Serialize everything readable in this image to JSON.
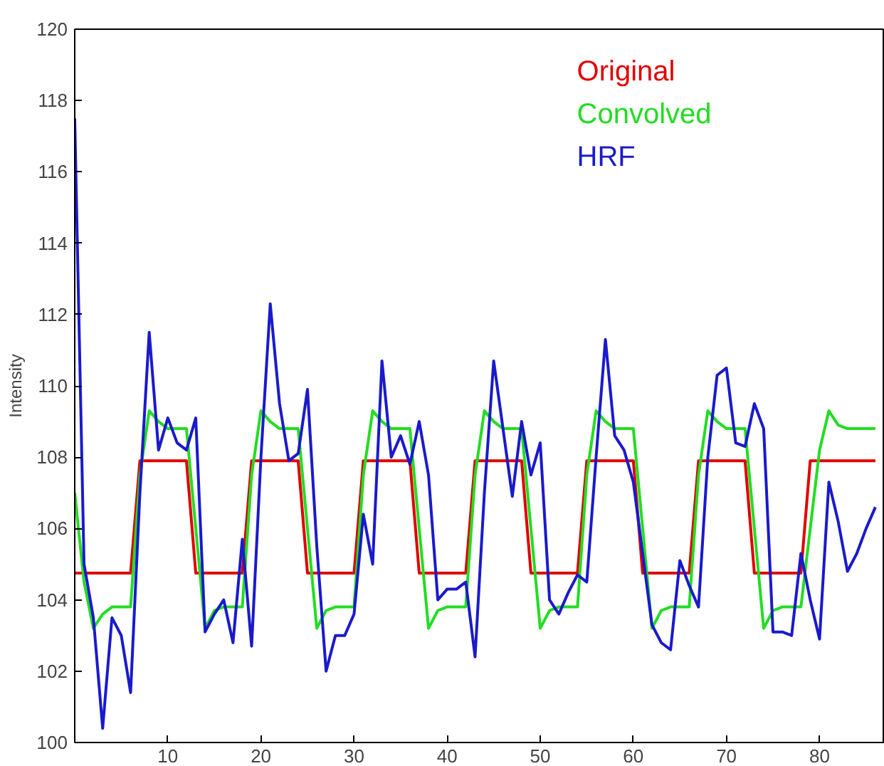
{
  "chart_data": {
    "type": "line",
    "ylabel": "Intensity",
    "xlim": [
      0,
      87
    ],
    "ylim": [
      100,
      120
    ],
    "xticks": [
      10,
      20,
      30,
      40,
      50,
      60,
      70,
      80
    ],
    "yticks": [
      100,
      102,
      104,
      106,
      108,
      110,
      112,
      114,
      116,
      118,
      120
    ],
    "grid": false,
    "legend": "top right",
    "marker": "none",
    "line_style": "solid",
    "x": [
      0,
      1,
      2,
      3,
      4,
      5,
      6,
      7,
      8,
      9,
      10,
      11,
      12,
      13,
      14,
      15,
      16,
      17,
      18,
      19,
      20,
      21,
      22,
      23,
      24,
      25,
      26,
      27,
      28,
      29,
      30,
      31,
      32,
      33,
      34,
      35,
      36,
      37,
      38,
      39,
      40,
      41,
      42,
      43,
      44,
      45,
      46,
      47,
      48,
      49,
      50,
      51,
      52,
      53,
      54,
      55,
      56,
      57,
      58,
      59,
      60,
      61,
      62,
      63,
      64,
      65,
      66,
      67,
      68,
      69,
      70,
      71,
      72,
      73,
      74,
      75,
      76,
      77,
      78,
      79,
      80,
      81,
      82,
      83,
      84,
      85,
      86
    ],
    "series": [
      {
        "name": "Original",
        "color": "#e00000",
        "values": [
          104.75,
          104.75,
          104.75,
          104.75,
          104.75,
          104.75,
          104.75,
          107.9,
          107.9,
          107.9,
          107.9,
          107.9,
          107.9,
          104.75,
          104.75,
          104.75,
          104.75,
          104.75,
          104.75,
          107.9,
          107.9,
          107.9,
          107.9,
          107.9,
          107.9,
          104.75,
          104.75,
          104.75,
          104.75,
          104.75,
          104.75,
          107.9,
          107.9,
          107.9,
          107.9,
          107.9,
          107.9,
          104.75,
          104.75,
          104.75,
          104.75,
          104.75,
          104.75,
          107.9,
          107.9,
          107.9,
          107.9,
          107.9,
          107.9,
          104.75,
          104.75,
          104.75,
          104.75,
          104.75,
          104.75,
          107.9,
          107.9,
          107.9,
          107.9,
          107.9,
          107.9,
          104.75,
          104.75,
          104.75,
          104.75,
          104.75,
          104.75,
          107.9,
          107.9,
          107.9,
          107.9,
          107.9,
          107.9,
          104.75,
          104.75,
          104.75,
          104.75,
          104.75,
          104.75,
          107.9,
          107.9,
          107.9,
          107.9,
          107.9,
          107.9,
          107.9,
          107.9
        ]
      },
      {
        "name": "Convolved",
        "color": "#22dd22",
        "values": [
          107,
          104.5,
          103.2,
          103.6,
          103.8,
          103.8,
          103.8,
          107.5,
          109.3,
          109,
          108.8,
          108.8,
          108.8,
          106,
          103.2,
          103.7,
          103.8,
          103.8,
          103.8,
          107.5,
          109.3,
          109,
          108.8,
          108.8,
          108.8,
          106,
          103.2,
          103.7,
          103.8,
          103.8,
          103.8,
          107.5,
          109.3,
          109,
          108.8,
          108.8,
          108.8,
          106,
          103.2,
          103.7,
          103.8,
          103.8,
          103.8,
          107.5,
          109.3,
          109,
          108.8,
          108.8,
          108.8,
          106,
          103.2,
          103.7,
          103.8,
          103.8,
          103.8,
          107.5,
          109.3,
          109,
          108.8,
          108.8,
          108.8,
          106,
          103.2,
          103.7,
          103.8,
          103.8,
          103.8,
          107.5,
          109.3,
          109,
          108.8,
          108.8,
          108.8,
          106,
          103.2,
          103.7,
          103.8,
          103.8,
          103.8,
          106,
          108.2,
          109.3,
          108.9,
          108.8,
          108.8,
          108.8,
          108.8
        ]
      },
      {
        "name": "HRF",
        "color": "#1a1acc",
        "values": [
          117.5,
          105,
          103.5,
          100.4,
          103.5,
          103,
          101.4,
          107,
          111.5,
          108.2,
          109.1,
          108.4,
          108.2,
          109.1,
          103.1,
          103.6,
          104,
          102.8,
          105.7,
          102.7,
          108,
          112.3,
          109.5,
          107.9,
          108.1,
          109.9,
          105.5,
          102,
          103,
          103,
          103.6,
          106.4,
          105,
          110.7,
          108,
          108.6,
          107.8,
          109,
          107.5,
          104,
          104.3,
          104.3,
          104.5,
          102.4,
          107,
          110.7,
          108.8,
          106.9,
          109,
          107.5,
          108.4,
          104,
          103.6,
          104.2,
          104.7,
          104.5,
          108,
          111.3,
          108.6,
          108.2,
          107.3,
          105.3,
          103.3,
          102.8,
          102.6,
          105.1,
          104.4,
          103.8,
          108,
          110.3,
          110.5,
          108.4,
          108.3,
          109.5,
          108.8,
          103.1,
          103.1,
          103,
          105.3,
          104,
          102.9,
          107.3,
          106.2,
          104.8,
          105.3,
          106,
          106.6
        ]
      }
    ]
  }
}
